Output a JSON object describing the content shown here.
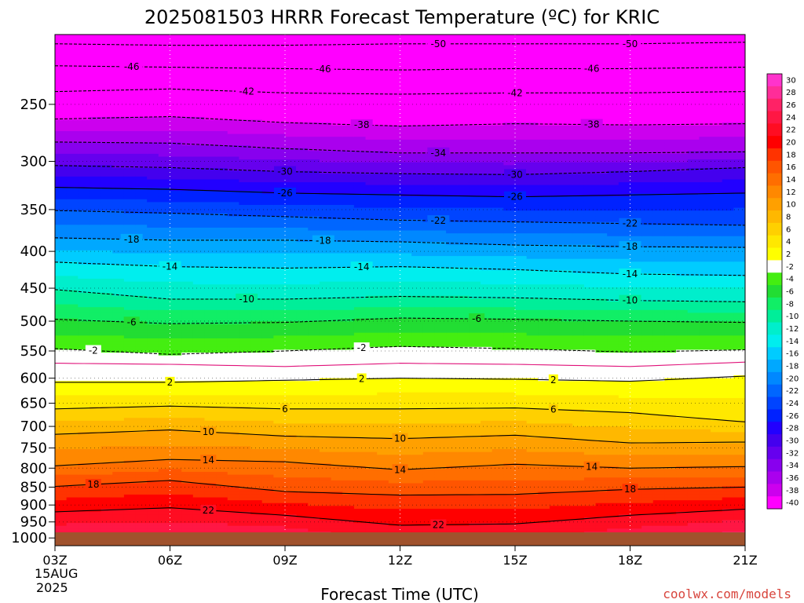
{
  "page": {
    "title": "2025081503 HRRR Forecast Temperature (ºC) for KRIC",
    "credit": "coolwx.com/models"
  },
  "chart_data": {
    "type": "heatmap",
    "title": "2025081503 HRRR Forecast Temperature (ºC) for KRIC",
    "xlabel": "Forecast Time (UTC)",
    "ylabel": "",
    "x_ticks": [
      "03Z",
      "06Z",
      "09Z",
      "12Z",
      "15Z",
      "18Z",
      "21Z"
    ],
    "x_hours": [
      3,
      6,
      9,
      12,
      15,
      18,
      21
    ],
    "x_start_date_lines": [
      "15AUG",
      "2025"
    ],
    "xlim": [
      3,
      21
    ],
    "y_ticks": [
      250,
      300,
      350,
      400,
      450,
      500,
      550,
      600,
      650,
      700,
      750,
      800,
      850,
      900,
      950,
      1000
    ],
    "y_scale": "log-pressure",
    "ylim": [
      1025,
      200
    ],
    "ground_color": "#a0522d",
    "colorbar": {
      "labels": [
        30,
        28,
        26,
        24,
        22,
        20,
        18,
        16,
        14,
        12,
        10,
        8,
        6,
        4,
        2,
        -2,
        -4,
        -6,
        -8,
        -10,
        -12,
        -14,
        -16,
        -18,
        -20,
        -22,
        -24,
        -26,
        -28,
        -30,
        -32,
        -34,
        -36,
        -38,
        -40
      ],
      "colors": [
        "#ff33cc",
        "#ff2d99",
        "#ff2266",
        "#ff1744",
        "#ff0d22",
        "#ff0000",
        "#ff3300",
        "#ff5500",
        "#ff6e00",
        "#ff8800",
        "#ffa000",
        "#ffb800",
        "#ffd000",
        "#ffe800",
        "#ffff00",
        "#ffffff",
        "#44ee11",
        "#22dd33",
        "#11ee66",
        "#00ee99",
        "#00eecc",
        "#00eeee",
        "#00ccff",
        "#00a8ff",
        "#0088ff",
        "#0066ff",
        "#0044ff",
        "#0022ff",
        "#2200ff",
        "#4400ee",
        "#6600ee",
        "#8800ee",
        "#aa00ee",
        "#cc00ee",
        "#ff00ff"
      ]
    },
    "contours": [
      {
        "value": -50,
        "style": "dashed",
        "pressures": [
          206,
          207,
          207,
          206,
          206,
          206,
          205
        ],
        "labels": [
          {
            "hour": 13,
            "text": "-50"
          },
          {
            "hour": 18,
            "text": "-50"
          }
        ]
      },
      {
        "value": -46,
        "style": "dashed",
        "pressures": [
          221,
          222,
          223,
          224,
          223,
          223,
          222
        ],
        "labels": [
          {
            "hour": 5,
            "text": "-46"
          },
          {
            "hour": 10,
            "text": "-46"
          },
          {
            "hour": 17,
            "text": "-46"
          }
        ]
      },
      {
        "value": -42,
        "style": "dashed",
        "pressures": [
          240,
          238,
          241,
          242,
          241,
          241,
          240
        ],
        "labels": [
          {
            "hour": 8,
            "text": "-42"
          },
          {
            "hour": 15,
            "text": "-42"
          }
        ]
      },
      {
        "value": -38,
        "style": "dashed",
        "pressures": [
          262,
          260,
          265,
          268,
          266,
          267,
          266
        ],
        "labels": [
          {
            "hour": 11,
            "text": "-38"
          },
          {
            "hour": 17,
            "text": "-38"
          }
        ]
      },
      {
        "value": -34,
        "style": "dashed",
        "pressures": [
          282,
          283,
          288,
          292,
          292,
          292,
          291
        ],
        "labels": [
          {
            "hour": 13,
            "text": "-34"
          }
        ]
      },
      {
        "value": -30,
        "style": "dashed",
        "pressures": [
          304,
          306,
          310,
          312,
          313,
          310,
          306
        ],
        "labels": [
          {
            "hour": 9,
            "text": "-30"
          },
          {
            "hour": 15,
            "text": "-30"
          }
        ]
      },
      {
        "value": -26,
        "style": "solid",
        "pressures": [
          326,
          328,
          332,
          334,
          336,
          334,
          332
        ],
        "labels": [
          {
            "hour": 9,
            "text": "-26"
          },
          {
            "hour": 15,
            "text": "-26"
          }
        ]
      },
      {
        "value": -22,
        "style": "dashed",
        "pressures": [
          351,
          354,
          358,
          362,
          364,
          366,
          368
        ],
        "labels": [
          {
            "hour": 13,
            "text": "-22"
          },
          {
            "hour": 18,
            "text": "-22"
          }
        ]
      },
      {
        "value": -18,
        "style": "dashed",
        "pressures": [
          383,
          386,
          386,
          388,
          392,
          394,
          395
        ],
        "labels": [
          {
            "hour": 5,
            "text": "-18"
          },
          {
            "hour": 10,
            "text": "-18"
          },
          {
            "hour": 18,
            "text": "-18"
          }
        ]
      },
      {
        "value": -14,
        "style": "dashed",
        "pressures": [
          414,
          420,
          422,
          420,
          424,
          430,
          432
        ],
        "labels": [
          {
            "hour": 6,
            "text": "-14"
          },
          {
            "hour": 11,
            "text": "-14"
          },
          {
            "hour": 18,
            "text": "-14"
          }
        ]
      },
      {
        "value": -10,
        "style": "dashed",
        "pressures": [
          452,
          466,
          466,
          462,
          464,
          468,
          470
        ],
        "labels": [
          {
            "hour": 8,
            "text": "-10"
          },
          {
            "hour": 18,
            "text": "-10"
          }
        ]
      },
      {
        "value": -6,
        "style": "dashed",
        "pressures": [
          497,
          504,
          502,
          495,
          497,
          500,
          502
        ],
        "labels": [
          {
            "hour": 5,
            "text": "-6"
          },
          {
            "hour": 14,
            "text": "-6"
          }
        ]
      },
      {
        "value": -2,
        "style": "dashed",
        "pressures": [
          546,
          556,
          550,
          542,
          546,
          552,
          548
        ],
        "labels": [
          {
            "hour": 4,
            "text": "-2"
          },
          {
            "hour": 11,
            "text": "-2"
          }
        ]
      },
      {
        "value": 0,
        "style": "magenta",
        "pressures": [
          572,
          574,
          578,
          572,
          574,
          578,
          570
        ],
        "labels": []
      },
      {
        "value": 2,
        "style": "solid",
        "pressures": [
          608,
          608,
          604,
          600,
          602,
          606,
          596
        ],
        "labels": [
          {
            "hour": 6,
            "text": "2"
          },
          {
            "hour": 11,
            "text": "2"
          },
          {
            "hour": 16,
            "text": "2"
          }
        ]
      },
      {
        "value": 6,
        "style": "solid",
        "pressures": [
          662,
          656,
          662,
          662,
          660,
          670,
          690
        ],
        "labels": [
          {
            "hour": 9,
            "text": "6"
          },
          {
            "hour": 16,
            "text": "6"
          }
        ]
      },
      {
        "value": 10,
        "style": "solid",
        "pressures": [
          718,
          708,
          722,
          728,
          720,
          738,
          736
        ],
        "labels": [
          {
            "hour": 7,
            "text": "10"
          },
          {
            "hour": 12,
            "text": "10"
          }
        ]
      },
      {
        "value": 14,
        "style": "solid",
        "pressures": [
          794,
          778,
          784,
          804,
          790,
          800,
          796
        ],
        "labels": [
          {
            "hour": 7,
            "text": "14"
          },
          {
            "hour": 12,
            "text": "14"
          },
          {
            "hour": 17,
            "text": "14"
          }
        ]
      },
      {
        "value": 18,
        "style": "solid",
        "pressures": [
          848,
          832,
          862,
          872,
          870,
          856,
          850
        ],
        "labels": [
          {
            "hour": 4,
            "text": "18"
          },
          {
            "hour": 18,
            "text": "18"
          }
        ]
      },
      {
        "value": 22,
        "style": "solid",
        "pressures": [
          920,
          908,
          930,
          960,
          956,
          930,
          912
        ],
        "labels": [
          {
            "hour": 7,
            "text": "22"
          },
          {
            "hour": 13,
            "text": "22"
          }
        ]
      }
    ]
  }
}
